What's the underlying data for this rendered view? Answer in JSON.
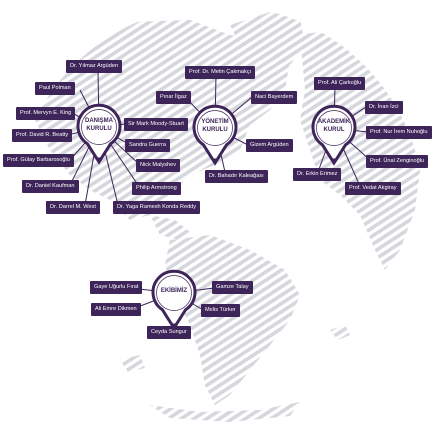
{
  "colors": {
    "accent": "#3d2459",
    "stripes": "#d6d6dd",
    "pin_ring": "#3d2459",
    "pin_fill": "#ffffff",
    "connector": "#3d2459"
  },
  "background": {
    "icon": "globe-icon"
  },
  "groups": {
    "danisma": {
      "title_line1": "DANIŞMA",
      "title_line2": "KURULU",
      "members": [
        "Dr. Yılmaz Argüden",
        "Paul Polman",
        "Prof. Mervyn E. King",
        "Prof. David R. Beatty",
        "Prof. Gülay Barbarosoğlu",
        "Dr. Daniel Kaufman",
        "Dr. Darrel M. West",
        "Dr. Yaga Ramesh Konda Reddy",
        "Philip Armstrong",
        "Nick Malyshev",
        "Sandra Guerra",
        "Sir Mark Moody-Stuart"
      ]
    },
    "yonetim": {
      "title_line1": "YÖNETİM",
      "title_line2": "KURULU",
      "members": [
        "Prof. Dr. Metin Çakmakçı",
        "Pınar İlgaz",
        "Naci Bayerdem",
        "Gizem Argüden",
        "Dr. Bahadır Kaleağası"
      ]
    },
    "akademik": {
      "title_line1": "AKADEMİK",
      "title_line2": "KURUL",
      "members": [
        "Prof. Ali Çarkoğlu",
        "Dr. İnan İzci",
        "Prof. Nur İrem Nuhoğlu",
        "Prof. Ünal Zenginoğlu",
        "Prof. Vedat Akgiray",
        "Dr. Erkin Erimez"
      ]
    },
    "ekibimiz": {
      "title_line1": "EKİBİMİZ",
      "title_line2": "",
      "members": [
        "Gaye Uğurlu Fırat",
        "Gamze Talay",
        "Ali Emre Dikmen",
        "Melis Türker",
        "Ceyda Sungur"
      ]
    }
  }
}
